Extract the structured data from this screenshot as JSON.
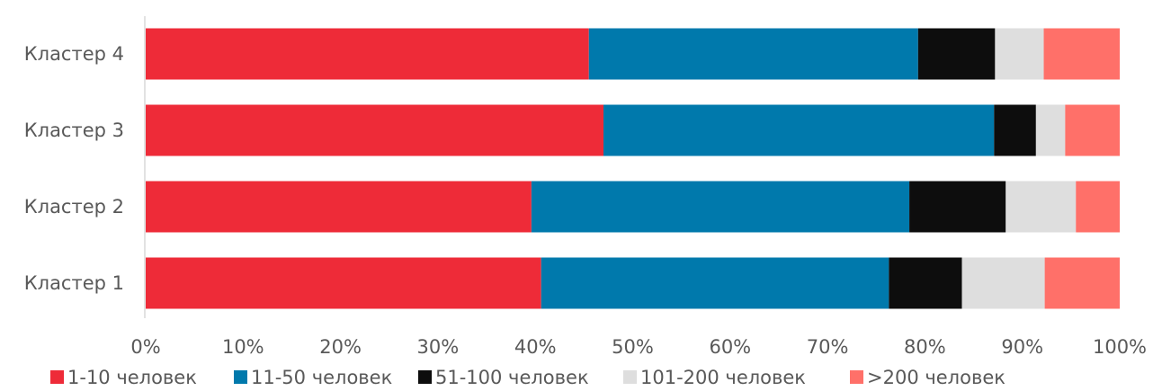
{
  "chart_data": {
    "type": "bar",
    "orientation": "horizontal",
    "stacked": "percent",
    "categories": [
      "Кластер 4",
      "Кластер 3",
      "Кластер 2",
      "Кластер 1"
    ],
    "series": [
      {
        "name": "1-10 человек",
        "color": "#EE2B38",
        "values": [
          45.5,
          47.0,
          39.6,
          40.6
        ]
      },
      {
        "name": "11-50 человек",
        "color": "#0079AC",
        "values": [
          33.8,
          40.1,
          38.8,
          35.7
        ]
      },
      {
        "name": "51-100 человек",
        "color": "#0D0D0D",
        "values": [
          7.9,
          4.3,
          9.9,
          7.5
        ]
      },
      {
        "name": "101-200 человек",
        "color": "#DEDEDE",
        "values": [
          5.0,
          3.0,
          7.2,
          8.5
        ]
      },
      {
        "name": ">200 человек",
        "color": "#FF7069",
        "values": [
          7.8,
          5.6,
          4.5,
          7.7
        ]
      }
    ],
    "xlim": [
      0,
      100
    ],
    "xticks": [
      "0%",
      "10%",
      "20%",
      "30%",
      "40%",
      "50%",
      "60%",
      "70%",
      "80%",
      "90%",
      "100%"
    ],
    "grid": false,
    "legend_position": "bottom"
  }
}
